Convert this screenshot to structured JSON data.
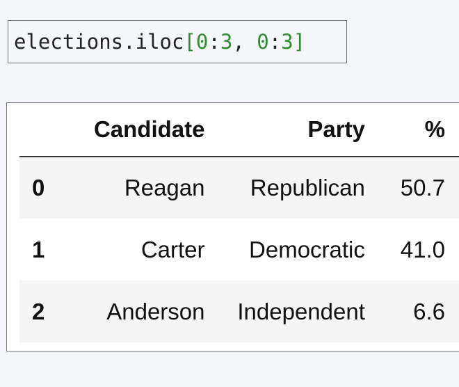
{
  "code": {
    "object": "elections",
    "dot": ".",
    "method": "iloc",
    "open_bracket": "[",
    "start1": "0",
    "colon1": ":",
    "stop1": "3",
    "comma": ", ",
    "start2": "0",
    "colon2": ":",
    "stop2": "3",
    "close_bracket": "]"
  },
  "table": {
    "index_header": "",
    "columns": [
      "Candidate",
      "Party",
      "%"
    ],
    "rows": [
      {
        "index": "0",
        "candidate": "Reagan",
        "party": "Republican",
        "pct": "50.7"
      },
      {
        "index": "1",
        "candidate": "Carter",
        "party": "Democratic",
        "pct": "41.0"
      },
      {
        "index": "2",
        "candidate": "Anderson",
        "party": "Independent",
        "pct": "6.6"
      }
    ]
  }
}
